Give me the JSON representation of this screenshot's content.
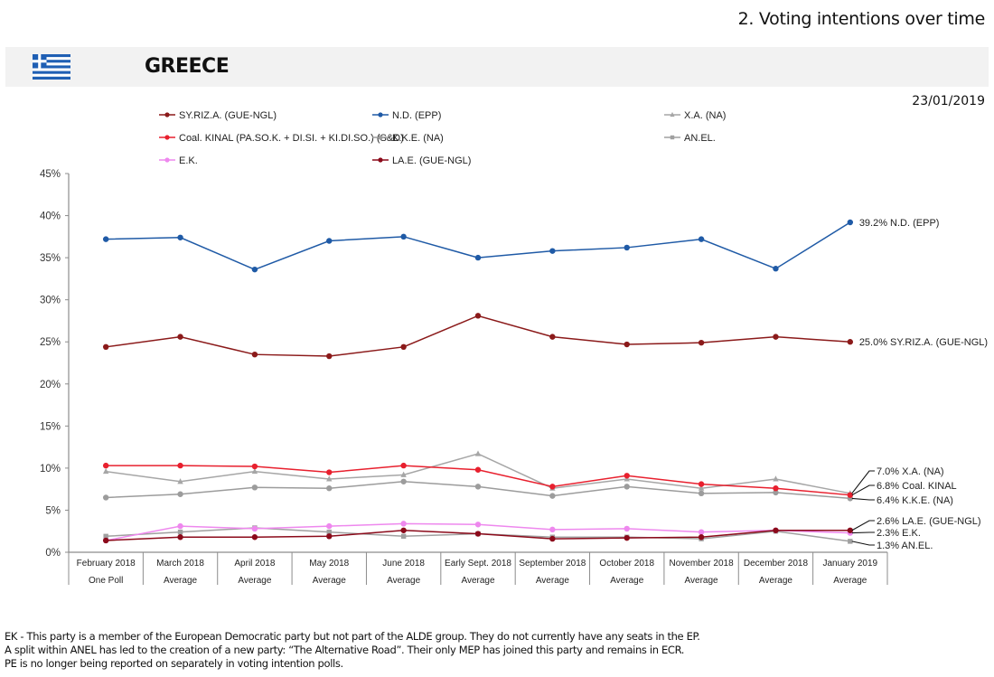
{
  "header": {
    "section_title": "2. Voting intentions over time",
    "country": "GREECE",
    "flag_icon": "greece-flag-icon",
    "date": "23/01/2019"
  },
  "footnotes": [
    "EK - This party is a member of the European Democratic party but not part of the ALDE group. They do not currently have any seats in the EP.",
    "A split within ANEL has led to the creation of a new party: “The Alternative Road”. Their only MEP has joined this party and remains in ECR.",
    "PE is no longer being reported on separately in voting intention polls."
  ],
  "chart_data": {
    "type": "line",
    "title": "",
    "xlabel": "",
    "ylabel": "",
    "ylim": [
      0,
      45
    ],
    "yticks": [
      0,
      5,
      10,
      15,
      20,
      25,
      30,
      35,
      40,
      45
    ],
    "ytick_labels": [
      "0%",
      "5%",
      "10%",
      "15%",
      "20%",
      "25%",
      "30%",
      "35%",
      "40%",
      "45%"
    ],
    "grid": false,
    "legend_position": "top",
    "categories": [
      "February 2018",
      "March 2018",
      "April 2018",
      "May 2018",
      "June 2018",
      "Early Sept. 2018",
      "September 2018",
      "October 2018",
      "November 2018",
      "December 2018",
      "January 2019"
    ],
    "category_sublabels": [
      "One Poll",
      "Average",
      "Average",
      "Average",
      "Average",
      "Average",
      "Average",
      "Average",
      "Average",
      "Average",
      "Average"
    ],
    "series": [
      {
        "name": "SY.RIZ.A. (GUE-NGL)",
        "color": "#8b1a1a",
        "marker": "circle",
        "values": [
          24.4,
          25.6,
          23.5,
          23.3,
          24.4,
          28.1,
          25.6,
          24.7,
          24.9,
          25.6,
          25.0
        ],
        "end_label": "25.0% SY.RIZ.A. (GUE-NGL)"
      },
      {
        "name": "N.D. (EPP)",
        "color": "#1f5aa6",
        "marker": "circle",
        "values": [
          37.2,
          37.4,
          33.6,
          37.0,
          37.5,
          35.0,
          35.8,
          36.2,
          37.2,
          33.7,
          39.2
        ],
        "end_label": "39.2% N.D. (EPP)"
      },
      {
        "name": "X.A. (NA)",
        "color": "#a6a6a6",
        "marker": "triangle",
        "values": [
          9.6,
          8.4,
          9.6,
          8.7,
          9.2,
          11.7,
          7.6,
          8.7,
          7.6,
          8.7,
          7.0
        ],
        "end_label": "7.0% X.A. (NA)"
      },
      {
        "name": "Coal. KINAL (PA.SO.K. + DI.SI. + KI.DI.SO.) (S&D)",
        "color": "#e8202e",
        "marker": "circle",
        "values": [
          10.3,
          10.3,
          10.2,
          9.5,
          10.3,
          9.8,
          7.8,
          9.1,
          8.1,
          7.6,
          6.8
        ],
        "end_label": "6.8% Coal. KINAL"
      },
      {
        "name": "K.K.E. (NA)",
        "color": "#9c9c9c",
        "marker": "circle",
        "values": [
          6.5,
          6.9,
          7.7,
          7.6,
          8.4,
          7.8,
          6.7,
          7.8,
          7.0,
          7.1,
          6.4
        ],
        "end_label": "6.4% K.K.E. (NA)"
      },
      {
        "name": "AN.EL.",
        "color": "#a0a0a0",
        "marker": "square",
        "values": [
          1.9,
          2.4,
          2.9,
          2.4,
          1.9,
          2.2,
          1.8,
          1.8,
          1.6,
          2.5,
          1.3
        ],
        "end_label": "1.3% AN.EL."
      },
      {
        "name": "E.K.",
        "color": "#ee88ee",
        "marker": "circle",
        "values": [
          1.4,
          3.1,
          2.8,
          3.1,
          3.4,
          3.3,
          2.7,
          2.8,
          2.4,
          2.6,
          2.3
        ],
        "end_label": "2.3% E.K."
      },
      {
        "name": "LA.E. (GUE-NGL)",
        "color": "#8b0a1a",
        "marker": "circle",
        "values": [
          1.4,
          1.8,
          1.8,
          1.9,
          2.6,
          2.2,
          1.6,
          1.7,
          1.8,
          2.6,
          2.6
        ],
        "end_label": "2.6% LA.E. (GUE-NGL)"
      }
    ]
  }
}
